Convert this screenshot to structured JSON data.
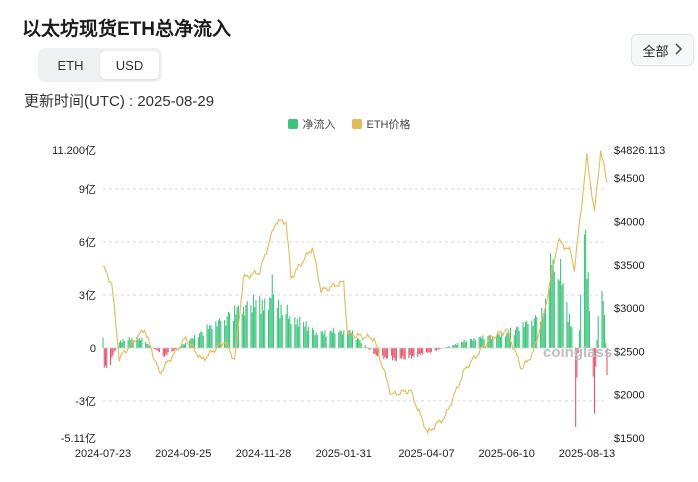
{
  "header": {
    "title": "以太坊现货ETH总净流入",
    "updated": "更新时间(UTC) : 2025-08-29"
  },
  "toggle": {
    "options": [
      "ETH",
      "USD"
    ],
    "selected": "USD"
  },
  "filter": {
    "label": "全部",
    "icon": "chevron-down-icon"
  },
  "watermark": "coinglass",
  "colors": {
    "inflow": "#3cc47c",
    "outflow": "#e0566e",
    "price": "#e2bb5a"
  },
  "chart_data": {
    "type": "bar+line",
    "legend": [
      "净流入",
      "ETH价格"
    ],
    "x_tick_labels": [
      "2024-07-23",
      "2024-09-25",
      "2024-11-28",
      "2025-01-31",
      "2025-04-07",
      "2025-06-10",
      "2025-08-13"
    ],
    "left_axis": {
      "ticks": [
        "11.200亿",
        "9亿",
        "6亿",
        "3亿",
        "0",
        "-3亿",
        "-5.11亿"
      ],
      "unit": "亿",
      "range": [
        -5.11,
        11.2
      ]
    },
    "right_axis": {
      "ticks": [
        "$4826.113",
        "$4500",
        "$4000",
        "$3500",
        "$3000",
        "$2500",
        "$2000",
        "$1500"
      ],
      "range": [
        1500,
        4826.113
      ]
    },
    "net_flow_anchors": [
      {
        "date": "2024-07-23",
        "value": 1.07
      },
      {
        "date": "2024-07-24",
        "value": -1.3
      },
      {
        "date": "2024-07-25",
        "value": -1.5
      },
      {
        "date": "2024-07-29",
        "value": -1.0
      },
      {
        "date": "2024-08-05",
        "value": 0.5
      },
      {
        "date": "2024-08-20",
        "value": 0.8
      },
      {
        "date": "2024-09-10",
        "value": -0.6
      },
      {
        "date": "2024-11-11",
        "value": 3.0
      },
      {
        "date": "2024-11-28",
        "value": 3.3
      },
      {
        "date": "2024-12-05",
        "value": 4.2
      },
      {
        "date": "2024-12-12",
        "value": 2.8
      },
      {
        "date": "2025-01-10",
        "value": 1.1
      },
      {
        "date": "2025-02-05",
        "value": 1.2
      },
      {
        "date": "2025-02-25",
        "value": -0.5
      },
      {
        "date": "2025-03-15",
        "value": -0.9
      },
      {
        "date": "2025-04-07",
        "value": -0.4
      },
      {
        "date": "2025-05-15",
        "value": 0.7
      },
      {
        "date": "2025-06-10",
        "value": 1.0
      },
      {
        "date": "2025-07-10",
        "value": 2.5
      },
      {
        "date": "2025-07-16",
        "value": 7.3
      },
      {
        "date": "2025-07-18",
        "value": 5.0
      },
      {
        "date": "2025-07-22",
        "value": 5.5
      },
      {
        "date": "2025-08-02",
        "value": 1.0
      },
      {
        "date": "2025-08-04",
        "value": -4.6
      },
      {
        "date": "2025-08-11",
        "value": 10.2
      },
      {
        "date": "2025-08-13",
        "value": 6.4
      },
      {
        "date": "2025-08-19",
        "value": -4.0
      },
      {
        "date": "2025-08-22",
        "value": 2.9
      },
      {
        "date": "2025-08-26",
        "value": 4.5
      },
      {
        "date": "2025-08-29",
        "value": -1.6
      }
    ],
    "price_anchors": [
      {
        "date": "2024-07-23",
        "value": 3480
      },
      {
        "date": "2024-07-30",
        "value": 3280
      },
      {
        "date": "2024-08-05",
        "value": 2420
      },
      {
        "date": "2024-08-25",
        "value": 2760
      },
      {
        "date": "2024-09-06",
        "value": 2250
      },
      {
        "date": "2024-09-27",
        "value": 2650
      },
      {
        "date": "2024-10-10",
        "value": 2400
      },
      {
        "date": "2024-10-28",
        "value": 2620
      },
      {
        "date": "2024-11-05",
        "value": 2400
      },
      {
        "date": "2024-11-12",
        "value": 3350
      },
      {
        "date": "2024-11-25",
        "value": 3420
      },
      {
        "date": "2024-12-08",
        "value": 4000
      },
      {
        "date": "2024-12-16",
        "value": 4000
      },
      {
        "date": "2024-12-20",
        "value": 3350
      },
      {
        "date": "2025-01-06",
        "value": 3700
      },
      {
        "date": "2025-01-13",
        "value": 3200
      },
      {
        "date": "2025-01-31",
        "value": 3300
      },
      {
        "date": "2025-02-03",
        "value": 2700
      },
      {
        "date": "2025-02-24",
        "value": 2650
      },
      {
        "date": "2025-03-10",
        "value": 2000
      },
      {
        "date": "2025-03-25",
        "value": 2050
      },
      {
        "date": "2025-04-08",
        "value": 1560
      },
      {
        "date": "2025-04-22",
        "value": 1750
      },
      {
        "date": "2025-05-08",
        "value": 2300
      },
      {
        "date": "2025-05-28",
        "value": 2650
      },
      {
        "date": "2025-06-10",
        "value": 2750
      },
      {
        "date": "2025-06-22",
        "value": 2300
      },
      {
        "date": "2025-07-01",
        "value": 2480
      },
      {
        "date": "2025-07-10",
        "value": 2950
      },
      {
        "date": "2025-07-21",
        "value": 3780
      },
      {
        "date": "2025-07-31",
        "value": 3650
      },
      {
        "date": "2025-08-03",
        "value": 3450
      },
      {
        "date": "2025-08-13",
        "value": 4750
      },
      {
        "date": "2025-08-19",
        "value": 4100
      },
      {
        "date": "2025-08-24",
        "value": 4826.113
      },
      {
        "date": "2025-08-29",
        "value": 4450
      }
    ]
  }
}
